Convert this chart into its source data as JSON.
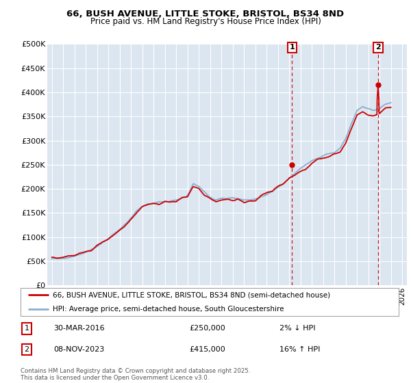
{
  "title": "66, BUSH AVENUE, LITTLE STOKE, BRISTOL, BS34 8ND",
  "subtitle": "Price paid vs. HM Land Registry's House Price Index (HPI)",
  "legend_line1": "66, BUSH AVENUE, LITTLE STOKE, BRISTOL, BS34 8ND (semi-detached house)",
  "legend_line2": "HPI: Average price, semi-detached house, South Gloucestershire",
  "annotation1_label": "1",
  "annotation1_date": "30-MAR-2016",
  "annotation1_price": "£250,000",
  "annotation1_hpi": "2% ↓ HPI",
  "annotation2_label": "2",
  "annotation2_date": "08-NOV-2023",
  "annotation2_price": "£415,000",
  "annotation2_hpi": "16% ↑ HPI",
  "copyright": "Contains HM Land Registry data © Crown copyright and database right 2025.\nThis data is licensed under the Open Government Licence v3.0.",
  "ylim": [
    0,
    500000
  ],
  "yticks": [
    0,
    50000,
    100000,
    150000,
    200000,
    250000,
    300000,
    350000,
    400000,
    450000,
    500000
  ],
  "ytick_labels": [
    "£0",
    "£50K",
    "£100K",
    "£150K",
    "£200K",
    "£250K",
    "£300K",
    "£350K",
    "£400K",
    "£450K",
    "£500K"
  ],
  "xlim_start": 1994.6,
  "xlim_end": 2026.4,
  "marker1_x": 2016.25,
  "marker2_x": 2023.85,
  "background_color": "#dce6f1",
  "red_color": "#cc0000",
  "blue_color": "#88aed0",
  "marker_box_color": "#cc0000",
  "fig_width": 6.0,
  "fig_height": 5.6,
  "dpi": 100
}
